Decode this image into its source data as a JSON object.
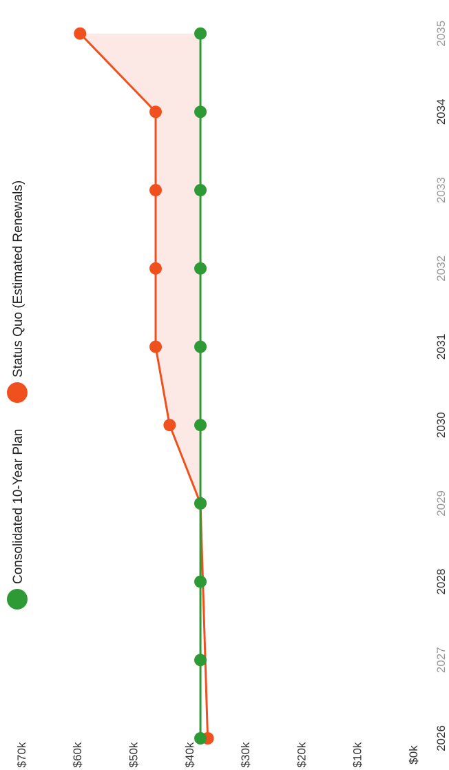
{
  "chart_data": {
    "type": "line",
    "orientation": "rotated-90-clockwise",
    "title": "",
    "xlabel": "",
    "ylabel": "",
    "x": [
      "2026",
      "2027",
      "2028",
      "2029",
      "2030",
      "2031",
      "2032",
      "2033",
      "2034",
      "2035"
    ],
    "ylim": [
      0,
      70000
    ],
    "y_ticks": [
      "$0k",
      "$10k",
      "$20k",
      "$30k",
      "$40k",
      "$50k",
      "$60k",
      "$70k"
    ],
    "y_tick_values": [
      0,
      10000,
      20000,
      30000,
      40000,
      50000,
      60000,
      70000
    ],
    "grid": false,
    "legend_position": "top",
    "shaded_gap": "between-series",
    "series": [
      {
        "name": "Consolidated 10-Year Plan",
        "color": "#2e9a35",
        "values": [
          38000,
          38000,
          38000,
          38000,
          38000,
          38000,
          38000,
          38000,
          38000,
          38000
        ]
      },
      {
        "name": "Status Quo (Estimated Renewals)",
        "color": "#f0501e",
        "values": [
          36700,
          null,
          null,
          38000,
          43500,
          46000,
          46000,
          46000,
          46000,
          59500
        ]
      }
    ]
  }
}
